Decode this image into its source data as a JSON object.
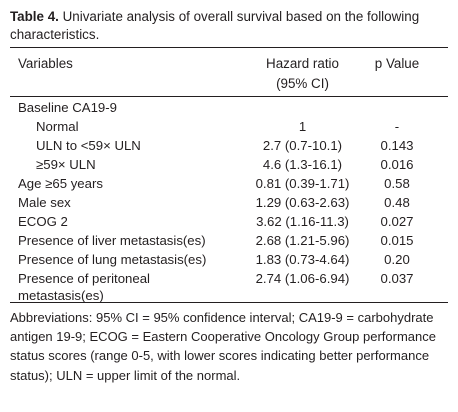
{
  "caption": {
    "label": "Table 4.",
    "text": "Univariate analysis of overall survival based on the following characteristics."
  },
  "columns": {
    "variables": "Variables",
    "hazard_ratio_line1": "Hazard ratio",
    "hazard_ratio_line2": "(95% CI)",
    "p_value": "p Value"
  },
  "rows": [
    {
      "variable": "Baseline CA19-9",
      "hazard_ratio": "",
      "p_value": ""
    },
    {
      "variable": "Normal",
      "hazard_ratio": "1",
      "p_value": "-"
    },
    {
      "variable": "ULN to <59× ULN",
      "hazard_ratio": "2.7 (0.7-10.1)",
      "p_value": "0.143"
    },
    {
      "variable": "≥59× ULN",
      "hazard_ratio": "4.6 (1.3-16.1)",
      "p_value": "0.016"
    },
    {
      "variable": "Age ≥65 years",
      "hazard_ratio": "0.81 (0.39-1.71)",
      "p_value": "0.58"
    },
    {
      "variable": "Male sex",
      "hazard_ratio": "1.29 (0.63-2.63)",
      "p_value": "0.48"
    },
    {
      "variable": "ECOG 2",
      "hazard_ratio": "3.62 (1.16-11.3)",
      "p_value": "0.027"
    },
    {
      "variable": "Presence of liver metastasis(es)",
      "hazard_ratio": "2.68 (1.21-5.96)",
      "p_value": "0.015"
    },
    {
      "variable": "Presence of lung metastasis(es)",
      "hazard_ratio": "1.83 (0.73-4.64)",
      "p_value": "0.20"
    },
    {
      "variable": "Presence of peritoneal",
      "hazard_ratio": "2.74 (1.06-6.94)",
      "p_value": "0.037"
    },
    {
      "variable": "metastasis(es)",
      "hazard_ratio": "",
      "p_value": ""
    }
  ],
  "footnote": "Abbreviations: 95% CI = 95% confidence interval; CA19-9 = carbohydrate antigen 19-9; ECOG = Eastern Cooperative Oncology Group performance status scores (range 0-5, with lower scores indicating better performance status); ULN = upper limit of the normal."
}
